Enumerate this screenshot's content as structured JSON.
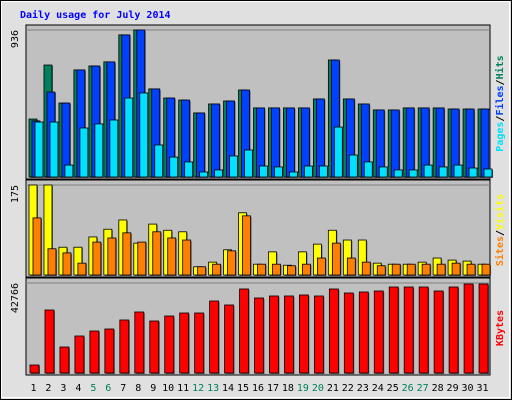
{
  "chart_data": [
    {
      "type": "bar",
      "title": "Daily usage for July 2014",
      "title_color": "#0000ff",
      "legend_separator": "/",
      "ylim": [
        0,
        936
      ],
      "yticks": [
        936
      ],
      "series": [
        {
          "name": "Hits",
          "color": "#00805c",
          "values": [
            369,
            713,
            471,
            682,
            707,
            733,
            905,
            936,
            561,
            503,
            490,
            408,
            465,
            484,
            554,
            440,
            440,
            440,
            440,
            497,
            745,
            497,
            465,
            427,
            427,
            440,
            440,
            440,
            433,
            433,
            433
          ]
        },
        {
          "name": "Files",
          "color": "#0040ff",
          "values": [
            357,
            541,
            471,
            682,
            707,
            733,
            905,
            936,
            561,
            503,
            490,
            408,
            465,
            484,
            554,
            440,
            440,
            440,
            440,
            497,
            745,
            497,
            465,
            427,
            427,
            440,
            440,
            440,
            433,
            433,
            433
          ]
        },
        {
          "name": "Pages",
          "color": "#00e0ff",
          "values": [
            350,
            350,
            76,
            312,
            338,
            363,
            503,
            535,
            204,
            127,
            96,
            32,
            45,
            134,
            172,
            70,
            64,
            32,
            70,
            70,
            318,
            140,
            96,
            64,
            45,
            45,
            76,
            64,
            76,
            57,
            51
          ]
        }
      ]
    },
    {
      "type": "bar",
      "ylim": [
        0,
        175
      ],
      "yticks": [
        175
      ],
      "series": [
        {
          "name": "Visits",
          "color": "#ffff00",
          "values": [
            175,
            175,
            54,
            54,
            74,
            89,
            107,
            62,
            99,
            87,
            84,
            16,
            25,
            49,
            121,
            21,
            45,
            19,
            45,
            60,
            87,
            68,
            68,
            23,
            21,
            21,
            25,
            33,
            29,
            27,
            21
          ]
        },
        {
          "name": "Sites",
          "color": "#ff8000",
          "values": [
            111,
            51,
            43,
            23,
            64,
            72,
            82,
            64,
            84,
            72,
            68,
            16,
            21,
            47,
            115,
            21,
            21,
            18,
            21,
            33,
            62,
            33,
            25,
            18,
            21,
            21,
            21,
            21,
            23,
            21,
            21
          ]
        }
      ]
    },
    {
      "type": "bar",
      "ylim": [
        0,
        42766
      ],
      "yticks": [
        42766
      ],
      "categories": [
        "1",
        "2",
        "3",
        "4",
        "5",
        "6",
        "7",
        "8",
        "9",
        "10",
        "11",
        "12",
        "13",
        "14",
        "15",
        "16",
        "17",
        "18",
        "19",
        "20",
        "21",
        "22",
        "23",
        "24",
        "25",
        "26",
        "27",
        "28",
        "29",
        "30",
        "31"
      ],
      "category_colors": [
        "#000000",
        "#000000",
        "#000000",
        "#000000",
        "#00805c",
        "#00805c",
        "#000000",
        "#000000",
        "#000000",
        "#000000",
        "#000000",
        "#00805c",
        "#00805c",
        "#000000",
        "#000000",
        "#000000",
        "#000000",
        "#000000",
        "#00805c",
        "#00805c",
        "#000000",
        "#000000",
        "#000000",
        "#000000",
        "#000000",
        "#00805c",
        "#00805c",
        "#000000",
        "#000000",
        "#000000",
        "#000000"
      ],
      "series": [
        {
          "name": "KBytes",
          "color": "#ff0000",
          "values": [
            3802,
            29938,
            12356,
            17583,
            19959,
            20910,
            25187,
            28989,
            24712,
            27088,
            28514,
            28514,
            34216,
            32316,
            39919,
            35642,
            36593,
            36593,
            37068,
            36593,
            39919,
            38018,
            38493,
            38969,
            40869,
            40869,
            40869,
            38969,
            40869,
            42291,
            42291
          ]
        }
      ]
    }
  ]
}
